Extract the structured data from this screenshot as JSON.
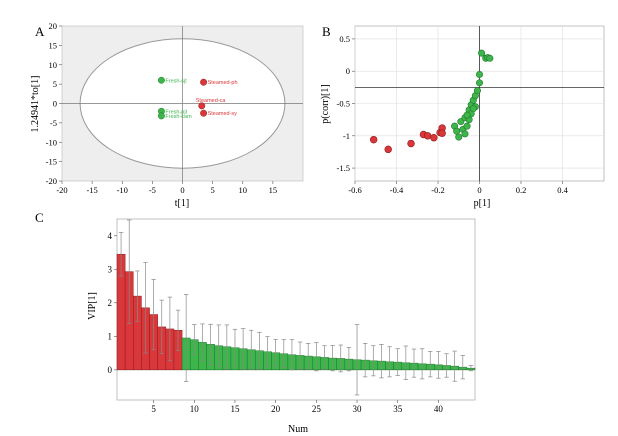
{
  "colors": {
    "red": "#d9373a",
    "red_edge": "#8e1c1c",
    "green": "#3db54a",
    "green_edge": "#1f7a2c",
    "panel_bg": "#eeeeee",
    "grid": "#dddddd",
    "error_bar": "#888888"
  },
  "chart_data": [
    {
      "panel": "A",
      "type": "scatter",
      "xlabel": "t[1]",
      "ylabel": "1.24941*to[1]",
      "xlim": [
        -20,
        20
      ],
      "ylim": [
        -20,
        20
      ],
      "xticks": [
        -20,
        -15,
        -10,
        -5,
        0,
        5,
        10,
        15
      ],
      "yticks": [
        -20,
        -15,
        -10,
        -5,
        0,
        5,
        10,
        15,
        20
      ],
      "ellipse": {
        "cx": 0,
        "cy": 0,
        "rx": 17,
        "ry": 16.7
      },
      "points": [
        {
          "label": "Fresh-sjt",
          "x": -3.5,
          "y": 6,
          "group": "fresh"
        },
        {
          "label": "Steamed-ph",
          "x": 3.5,
          "y": 5.5,
          "group": "steamed"
        },
        {
          "label": "Fresh-pjt",
          "x": -3.5,
          "y": -2,
          "group": "fresh"
        },
        {
          "label": "Fresh-cam",
          "x": -3.5,
          "y": -3.2,
          "group": "fresh"
        },
        {
          "label": "Steamed-ca",
          "x": 3.2,
          "y": -0.6,
          "group": "steamed"
        },
        {
          "label": "Steamed-sy",
          "x": 3.5,
          "y": -2.5,
          "group": "steamed"
        }
      ]
    },
    {
      "panel": "B",
      "type": "scatter",
      "xlabel": "p[1]",
      "ylabel": "p(corr)[1]",
      "xlim": [
        -0.6,
        0.6
      ],
      "ylim": [
        -1.7,
        0.7
      ],
      "xticks": [
        -0.6,
        -0.4,
        -0.2,
        0,
        0.2,
        0.4
      ],
      "yticks": [
        0.5,
        0,
        -0.5,
        -1,
        -1.5
      ],
      "ref_x": 0,
      "ref_y": -0.25,
      "red_points": [
        [
          -0.51,
          -1.06
        ],
        [
          -0.44,
          -1.21
        ],
        [
          -0.33,
          -1.12
        ],
        [
          -0.27,
          -0.98
        ],
        [
          -0.25,
          -1.0
        ],
        [
          -0.22,
          -1.03
        ],
        [
          -0.19,
          -0.95
        ],
        [
          -0.18,
          -0.88
        ],
        [
          -0.18,
          -0.96
        ]
      ],
      "green_points": [
        [
          -0.12,
          -0.85
        ],
        [
          -0.11,
          -0.93
        ],
        [
          -0.1,
          -1.02
        ],
        [
          -0.09,
          -0.78
        ],
        [
          -0.08,
          -0.9
        ],
        [
          -0.07,
          -0.97
        ],
        [
          -0.07,
          -0.72
        ],
        [
          -0.06,
          -0.85
        ],
        [
          -0.05,
          -0.6
        ],
        [
          -0.05,
          -0.75
        ],
        [
          -0.04,
          -0.52
        ],
        [
          -0.04,
          -0.66
        ],
        [
          -0.03,
          -0.45
        ],
        [
          -0.02,
          -0.38
        ],
        [
          -0.02,
          -0.55
        ],
        [
          -0.01,
          -0.3
        ],
        [
          0.0,
          -0.18
        ],
        [
          0.0,
          -0.05
        ],
        [
          0.01,
          0.28
        ],
        [
          0.03,
          0.2
        ],
        [
          0.04,
          0.21
        ],
        [
          0.05,
          0.2
        ],
        [
          -0.03,
          -0.58
        ],
        [
          -0.06,
          -0.68
        ]
      ]
    },
    {
      "panel": "C",
      "type": "bar",
      "xlabel": "Num",
      "ylabel": "VIP[1]",
      "ylim": [
        -0.9,
        4.5
      ],
      "xticks": [
        5,
        10,
        15,
        20,
        25,
        30,
        35,
        40
      ],
      "yticks": [
        0,
        1,
        2,
        3,
        4
      ],
      "red_count": 8,
      "values": [
        3.45,
        2.93,
        2.2,
        1.85,
        1.65,
        1.28,
        1.22,
        1.18,
        0.95,
        0.9,
        0.82,
        0.76,
        0.72,
        0.69,
        0.66,
        0.63,
        0.6,
        0.57,
        0.54,
        0.51,
        0.48,
        0.45,
        0.43,
        0.41,
        0.39,
        0.37,
        0.35,
        0.34,
        0.32,
        0.3,
        0.29,
        0.27,
        0.26,
        0.24,
        0.23,
        0.21,
        0.2,
        0.18,
        0.17,
        0.15,
        0.13,
        0.11,
        0.08,
        0.05
      ],
      "errors": [
        0.65,
        1.55,
        0.75,
        1.35,
        1.05,
        0.8,
        0.95,
        0.6,
        1.3,
        0.45,
        0.55,
        0.6,
        0.62,
        0.65,
        0.55,
        0.6,
        0.58,
        0.55,
        0.45,
        0.4,
        0.42,
        0.45,
        0.4,
        0.38,
        0.42,
        0.35,
        0.38,
        0.4,
        0.35,
        1.05,
        0.5,
        0.45,
        0.5,
        0.45,
        0.4,
        0.5,
        0.42,
        0.45,
        0.38,
        0.4,
        0.35,
        0.45,
        0.35,
        0.08
      ]
    }
  ]
}
